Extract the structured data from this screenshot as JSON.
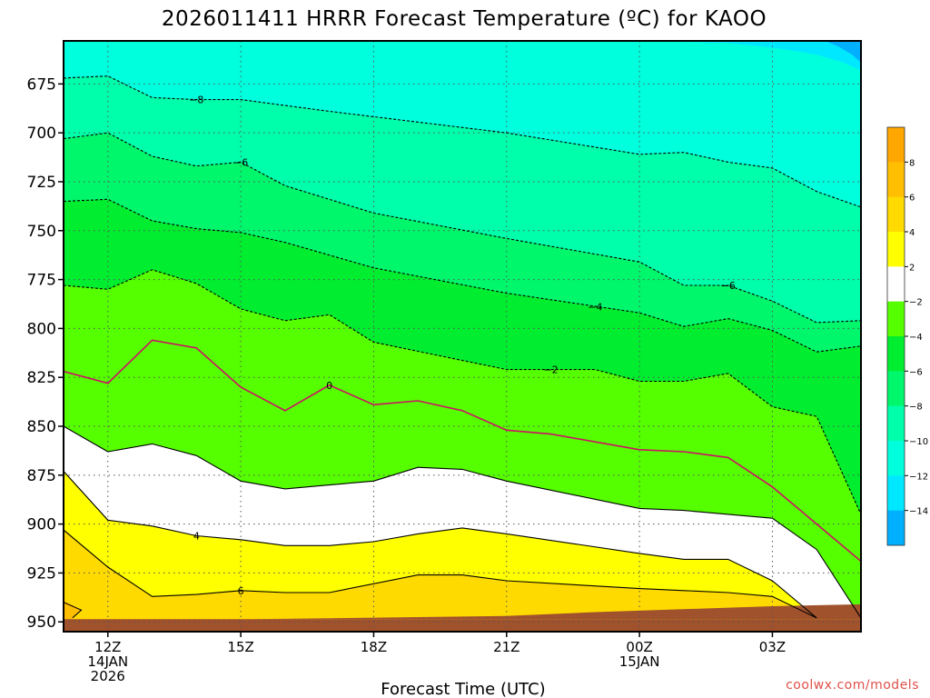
{
  "chart_data": {
    "type": "heatmap",
    "title": "2026011411 HRRR Forecast Temperature (ºC) for KAOO",
    "xlabel": "Forecast Time (UTC)",
    "ylabel": "",
    "credit": "coolwx.com/models",
    "x_range_hours": [
      11,
      29
    ],
    "y_range_hpa": [
      653,
      955
    ],
    "y_inverted": true,
    "x_ticks": [
      {
        "hour": 12,
        "lines": [
          "12Z",
          "14JAN",
          "2026"
        ]
      },
      {
        "hour": 15,
        "lines": [
          "15Z"
        ]
      },
      {
        "hour": 18,
        "lines": [
          "18Z"
        ]
      },
      {
        "hour": 21,
        "lines": [
          "21Z"
        ]
      },
      {
        "hour": 24,
        "lines": [
          "00Z",
          "15JAN"
        ]
      },
      {
        "hour": 27,
        "lines": [
          "03Z"
        ]
      }
    ],
    "y_ticks": [
      675,
      700,
      725,
      750,
      775,
      800,
      825,
      850,
      875,
      900,
      925,
      950
    ],
    "grid": true,
    "surface_pressure_hpa": 950,
    "colorbar": {
      "position": "right",
      "ticks": [
        "8",
        "6",
        "4",
        "2",
        "−2",
        "−4",
        "−6",
        "−8",
        "−10",
        "−12",
        "−14"
      ],
      "bands": [
        {
          "from": 8,
          "to": 10,
          "color": "#ffa600"
        },
        {
          "from": 6,
          "to": 8,
          "color": "#ffbe00"
        },
        {
          "from": 4,
          "to": 6,
          "color": "#ffda00"
        },
        {
          "from": 2,
          "to": 4,
          "color": "#ffff00"
        },
        {
          "from": -2,
          "to": 2,
          "color": "#ffffff"
        },
        {
          "from": -4,
          "to": -2,
          "color": "#55ff00"
        },
        {
          "from": -6,
          "to": -4,
          "color": "#00ee2f"
        },
        {
          "from": -8,
          "to": -6,
          "color": "#00f76c"
        },
        {
          "from": -10,
          "to": -8,
          "color": "#00ffaa"
        },
        {
          "from": -12,
          "to": -10,
          "color": "#00ffdd"
        },
        {
          "from": -14,
          "to": -12,
          "color": "#00e8ff"
        },
        {
          "from": -16,
          "to": -14,
          "color": "#00b0ff"
        }
      ]
    },
    "contours": [
      {
        "level": -8,
        "label": "−8",
        "style": "dashed",
        "points": [
          [
            11,
            672
          ],
          [
            12,
            671
          ],
          [
            13,
            682
          ],
          [
            14,
            683
          ],
          [
            15,
            683
          ],
          [
            17,
            689
          ],
          [
            21,
            700
          ],
          [
            24,
            711
          ],
          [
            25,
            710
          ],
          [
            26,
            715
          ],
          [
            27,
            718
          ],
          [
            28,
            730
          ],
          [
            29,
            738
          ]
        ]
      },
      {
        "level": -6,
        "label": "−6",
        "style": "dashed",
        "points": [
          [
            11,
            703
          ],
          [
            12,
            700
          ],
          [
            13,
            712
          ],
          [
            14,
            717
          ],
          [
            15,
            715
          ],
          [
            16,
            727
          ],
          [
            18,
            741
          ],
          [
            21,
            754
          ],
          [
            24,
            766
          ],
          [
            25,
            778
          ],
          [
            26,
            778
          ],
          [
            27,
            786
          ],
          [
            28,
            797
          ],
          [
            29,
            796
          ]
        ]
      },
      {
        "level": -4,
        "label": "−4",
        "style": "dashed",
        "points": [
          [
            11,
            735
          ],
          [
            12,
            734
          ],
          [
            13,
            745
          ],
          [
            14,
            749
          ],
          [
            15,
            751
          ],
          [
            16,
            756
          ],
          [
            18,
            769
          ],
          [
            21,
            782
          ],
          [
            24,
            792
          ],
          [
            25,
            799
          ],
          [
            26,
            795
          ],
          [
            27,
            801
          ],
          [
            28,
            812
          ],
          [
            29,
            809
          ]
        ]
      },
      {
        "level": -2,
        "label": "−2",
        "style": "dashed",
        "points": [
          [
            11,
            778
          ],
          [
            12,
            780
          ],
          [
            13,
            770
          ],
          [
            14,
            777
          ],
          [
            15,
            790
          ],
          [
            16,
            796
          ],
          [
            17,
            793
          ],
          [
            18,
            807
          ],
          [
            21,
            821
          ],
          [
            23,
            821
          ],
          [
            24,
            827
          ],
          [
            25,
            827
          ],
          [
            26,
            823
          ],
          [
            27,
            840
          ],
          [
            28,
            845
          ],
          [
            29,
            895
          ]
        ]
      },
      {
        "level": 0,
        "label": "0",
        "style": "solid",
        "color": "#cc1166",
        "points": [
          [
            11,
            822
          ],
          [
            12,
            828
          ],
          [
            13,
            806
          ],
          [
            14,
            810
          ],
          [
            15,
            830
          ],
          [
            16,
            842
          ],
          [
            17,
            829
          ],
          [
            18,
            839
          ],
          [
            19,
            837
          ],
          [
            20,
            842
          ],
          [
            21,
            852
          ],
          [
            22,
            854
          ],
          [
            24,
            862
          ],
          [
            25,
            863
          ],
          [
            26,
            866
          ],
          [
            27,
            881
          ],
          [
            28,
            900
          ],
          [
            29,
            919
          ]
        ]
      },
      {
        "level": 2,
        "label": "",
        "style": "solid",
        "points": [
          [
            11,
            850
          ],
          [
            12,
            863
          ],
          [
            13,
            859
          ],
          [
            14,
            865
          ],
          [
            15,
            878
          ],
          [
            16,
            882
          ],
          [
            17,
            880
          ],
          [
            18,
            878
          ],
          [
            19,
            871
          ],
          [
            20,
            872
          ],
          [
            21,
            878
          ],
          [
            24,
            892
          ],
          [
            25,
            893
          ],
          [
            26,
            895
          ],
          [
            27,
            897
          ],
          [
            28,
            913
          ],
          [
            29,
            948
          ]
        ]
      },
      {
        "level": 4,
        "label": "4",
        "style": "solid",
        "points": [
          [
            11,
            873
          ],
          [
            12,
            898
          ],
          [
            13,
            901
          ],
          [
            14,
            906
          ],
          [
            15,
            908
          ],
          [
            16,
            911
          ],
          [
            17,
            911
          ],
          [
            18,
            909
          ],
          [
            19,
            905
          ],
          [
            20,
            902
          ],
          [
            21,
            905
          ],
          [
            24,
            915
          ],
          [
            25,
            918
          ],
          [
            26,
            918
          ],
          [
            27,
            929
          ],
          [
            28,
            948
          ]
        ]
      },
      {
        "level": 6,
        "label": "6",
        "style": "solid",
        "points": [
          [
            11,
            903
          ],
          [
            12,
            922
          ],
          [
            13,
            937
          ],
          [
            14,
            936
          ],
          [
            15,
            934
          ],
          [
            16,
            935
          ],
          [
            17,
            935
          ],
          [
            19,
            926
          ],
          [
            20,
            926
          ],
          [
            21,
            929
          ],
          [
            24,
            933
          ],
          [
            25,
            934
          ],
          [
            26,
            935
          ],
          [
            27,
            937
          ],
          [
            28,
            948
          ]
        ]
      },
      {
        "level": 8,
        "label": "",
        "style": "solid",
        "points": [
          [
            11,
            940
          ],
          [
            11.4,
            944
          ],
          [
            11.2,
            948
          ]
        ]
      }
    ],
    "contour_labels": [
      {
        "level": -8,
        "label": "−8",
        "hour": 14.0,
        "hpa": 683
      },
      {
        "level": -6,
        "label": "−6",
        "hour": 15.0,
        "hpa": 715
      },
      {
        "level": -6,
        "label": "−6",
        "hour": 26.0,
        "hpa": 778
      },
      {
        "level": -4,
        "label": "−4",
        "hour": 23.0,
        "hpa": 789
      },
      {
        "level": -2,
        "label": "−2",
        "hour": 22.0,
        "hpa": 821
      },
      {
        "level": 0,
        "label": "0",
        "hour": 17.0,
        "hpa": 829
      },
      {
        "level": 4,
        "label": "4",
        "hour": 14.0,
        "hpa": 906
      },
      {
        "level": 6,
        "label": "6",
        "hour": 15.0,
        "hpa": 934
      }
    ]
  }
}
